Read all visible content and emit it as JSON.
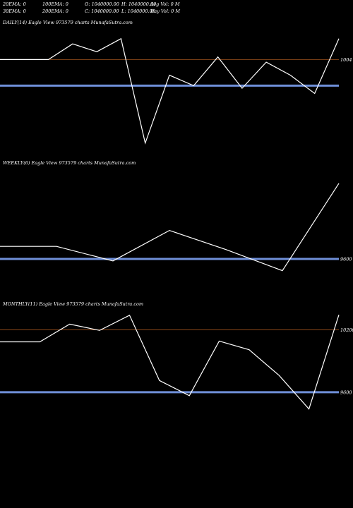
{
  "header": {
    "row1": [
      "20EMA: 0",
      "100EMA: 0",
      "O: 1040000.00",
      "H: 1040000.00",
      "Avg Vol: 0  M"
    ],
    "row2": [
      "30EMA: 0",
      "200EMA: 0",
      "C: 1040000.00",
      "L: 1040000.00",
      "Day Vol: 0  M"
    ]
  },
  "colors": {
    "background": "#000000",
    "price_line": "#ffffff",
    "ref_blue": "#6f8fd8",
    "ref_orange": "#a0521c"
  },
  "chart_data": [
    {
      "type": "line",
      "title": "DAILY(14) Eagle   View  973579 charts MunafaSutra.com",
      "ylim": [
        985,
        1010
      ],
      "ticks": [
        {
          "label": "1004",
          "value": 1004,
          "line": "orange"
        }
      ],
      "reference_lines": [
        {
          "value": 999,
          "color": "blue"
        }
      ],
      "series": [
        {
          "values": [
            1004,
            1004,
            1004,
            1007,
            1005.5,
            1008,
            988,
            1001,
            999,
            1004.5,
            998.5,
            1003.5,
            1001,
            997.5,
            1008
          ]
        }
      ]
    },
    {
      "type": "line",
      "title": "WEEKLY(6) Eagle   View  973579 charts MunafaSutra.com",
      "ylim": [
        940,
        1020
      ],
      "ticks": [
        {
          "label": "9600",
          "value": 960,
          "line": "orange"
        }
      ],
      "reference_lines": [
        {
          "value": 960,
          "color": "blue"
        }
      ],
      "series": [
        {
          "values": [
            968.3,
            968.3,
            958.7,
            978.8,
            966.2,
            952.3,
            1009.8
          ]
        }
      ]
    },
    {
      "type": "line",
      "title": "MONTHLY(11) Eagle   View  973579 charts MunafaSutra.com",
      "ylim": [
        930,
        1040
      ],
      "ticks": [
        {
          "label": "10200",
          "value": 1020,
          "line": "orange"
        },
        {
          "label": "9600",
          "value": 960,
          "line": "orange"
        }
      ],
      "reference_lines": [
        {
          "value": 960,
          "color": "blue"
        }
      ],
      "series": [
        {
          "values": [
            1008.4,
            1008.4,
            1025.5,
            1019.4,
            1034,
            971.2,
            956.6,
            1009.2,
            1000.8,
            976.1,
            943.8,
            1034.4
          ]
        }
      ]
    }
  ]
}
